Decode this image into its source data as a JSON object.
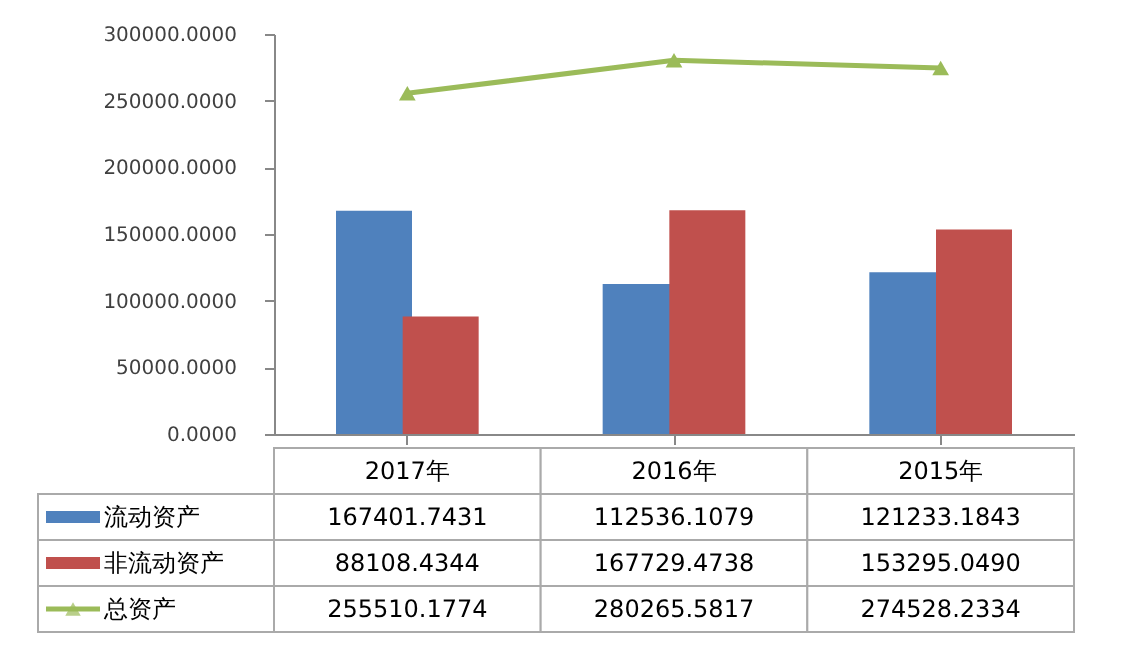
{
  "chart_data": {
    "type": "bar",
    "categories": [
      "2017年",
      "2016年",
      "2015年"
    ],
    "series": [
      {
        "name": "流动资产",
        "color": "#4f81bd",
        "values": [
          167401.7431,
          112536.1079,
          121233.1843
        ]
      },
      {
        "name": "非流动资产",
        "color": "#c0504d",
        "values": [
          88108.4344,
          167729.4738,
          153295.049
        ]
      },
      {
        "name": "总资产",
        "color": "#9bbb59",
        "type": "line",
        "marker": "triangle",
        "values": [
          255510.1774,
          280265.5817,
          274528.2334
        ]
      }
    ],
    "ylim": [
      0,
      300000
    ],
    "yticks": [
      {
        "value": 0,
        "label": "0.0000"
      },
      {
        "value": 50000,
        "label": "50000.0000"
      },
      {
        "value": 100000,
        "label": "100000.0000"
      },
      {
        "value": 150000,
        "label": "150000.0000"
      },
      {
        "value": 200000,
        "label": "200000.0000"
      },
      {
        "value": 250000,
        "label": "250000.0000"
      },
      {
        "value": 300000,
        "label": "300000.0000"
      }
    ],
    "value_labels": [
      [
        "167401.7431",
        "112536.1079",
        "121233.1843"
      ],
      [
        "88108.4344",
        "167729.4738",
        "153295.0490"
      ],
      [
        "255510.1774",
        "280265.5817",
        "274528.2334"
      ]
    ],
    "legend": "bottom"
  }
}
